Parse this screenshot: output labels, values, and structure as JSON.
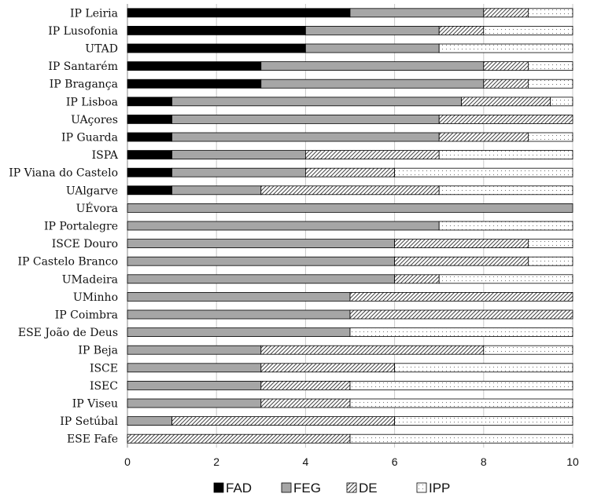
{
  "chart_data": {
    "type": "bar",
    "orientation": "horizontal",
    "stacked": true,
    "title": "",
    "xlabel": "",
    "ylabel": "",
    "xlim": [
      0,
      10
    ],
    "x_ticks": [
      0,
      2,
      4,
      6,
      8,
      10
    ],
    "grid": "vertical",
    "legend_position": "bottom",
    "categories": [
      "IP Leiria",
      "IP Lusofonia",
      "UTAD",
      "IP Santarém",
      "IP Bragança",
      "IP Lisboa",
      "UAçores",
      "IP Guarda",
      "ISPA",
      "IP Viana do Castelo",
      "UAlgarve",
      "UÉvora",
      "IP Portalegre",
      "ISCE Douro",
      "IP Castelo Branco",
      "UMadeira",
      "UMinho",
      "IP Coimbra",
      "ESE João de Deus",
      "IP Beja",
      "ISCE",
      "ISEC",
      "IP Viseu",
      "IP Setúbal",
      "ESE Fafe"
    ],
    "series": [
      {
        "name": "FAD",
        "pattern": "solid-black",
        "values": [
          5,
          4,
          4,
          3,
          3,
          1,
          1,
          1,
          1,
          1,
          1,
          0,
          0,
          0,
          0,
          0,
          0,
          0,
          0,
          0,
          0,
          0,
          0,
          0,
          0
        ]
      },
      {
        "name": "FEG",
        "pattern": "solid-gray",
        "values": [
          3,
          3,
          3,
          5,
          5,
          6.5,
          6,
          6,
          3,
          3,
          2,
          10,
          7,
          6,
          6,
          6,
          5,
          5,
          5,
          3,
          3,
          3,
          3,
          1,
          0
        ]
      },
      {
        "name": "DE",
        "pattern": "diagonal-hatch",
        "values": [
          1,
          1,
          0,
          1,
          1,
          2,
          3,
          2,
          3,
          2,
          4,
          0,
          0,
          3,
          3,
          1,
          5,
          5,
          0,
          5,
          3,
          2,
          2,
          5,
          5
        ]
      },
      {
        "name": "IPP",
        "pattern": "dotted",
        "values": [
          1,
          2,
          3,
          1,
          1,
          0.5,
          0,
          1,
          3,
          4,
          3,
          0,
          3,
          1,
          1,
          3,
          0,
          0,
          5,
          2,
          4,
          5,
          5,
          4,
          5
        ]
      }
    ]
  },
  "colors": {
    "FAD": "#000000",
    "FEG": "#a6a6a6",
    "DE_hatch": "#444444",
    "IPP_dot": "#777777",
    "gridline": "#c9c9c9"
  }
}
